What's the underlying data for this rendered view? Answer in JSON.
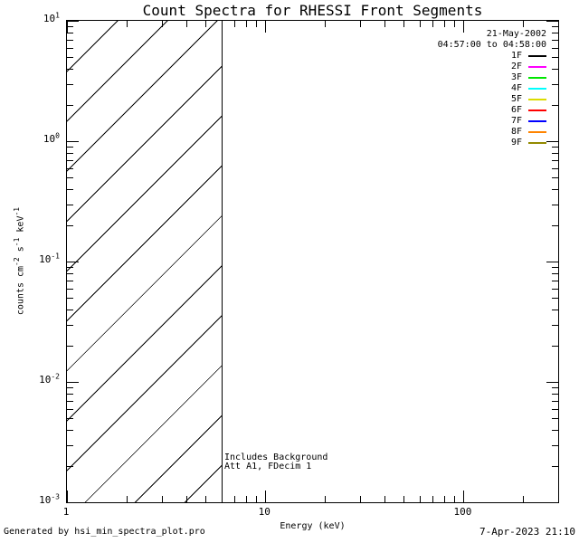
{
  "title": "Count Spectra for RHESSI Front Segments",
  "footer": {
    "left": "Generated by hsi_min_spectra_plot.pro",
    "right": "7-Apr-2023 21:10"
  },
  "chart_data": {
    "type": "line",
    "title": "Count Spectra for RHESSI Front Segments",
    "xlabel": "Energy (keV)",
    "ylabel": "counts cm^-2 s^-1 keV^-1",
    "xscale": "log",
    "yscale": "log",
    "xlim": [
      1,
      300
    ],
    "ylim": [
      0.001,
      10
    ],
    "grid": false,
    "x_major_ticks": [
      1,
      10,
      100
    ],
    "x_tick_labels": [
      "1",
      "10",
      "100"
    ],
    "y_major_tick_exponents": [
      1,
      0,
      -1,
      -2,
      -3
    ],
    "hatched_region": {
      "x_range_kev": [
        1,
        6
      ],
      "style": "diagonal-hatch"
    },
    "vertical_line_x_kev": 6,
    "annotations": [
      "Includes Background",
      "Att A1, FDecim 1"
    ],
    "legend_position": "top-right-inside",
    "legend": {
      "date": "21-May-2002",
      "time_range": "04:57:00 to 04:58:00",
      "entries": [
        {
          "name": "1F",
          "color": "#000000"
        },
        {
          "name": "2F",
          "color": "#ff00ff"
        },
        {
          "name": "3F",
          "color": "#00e600"
        },
        {
          "name": "4F",
          "color": "#00ffff"
        },
        {
          "name": "5F",
          "color": "#dcdc00"
        },
        {
          "name": "6F",
          "color": "#ff0000"
        },
        {
          "name": "7F",
          "color": "#0000ff"
        },
        {
          "name": "8F",
          "color": "#ff8400"
        },
        {
          "name": "9F",
          "color": "#938a00"
        }
      ]
    },
    "series": [],
    "visible_curves": "none"
  }
}
